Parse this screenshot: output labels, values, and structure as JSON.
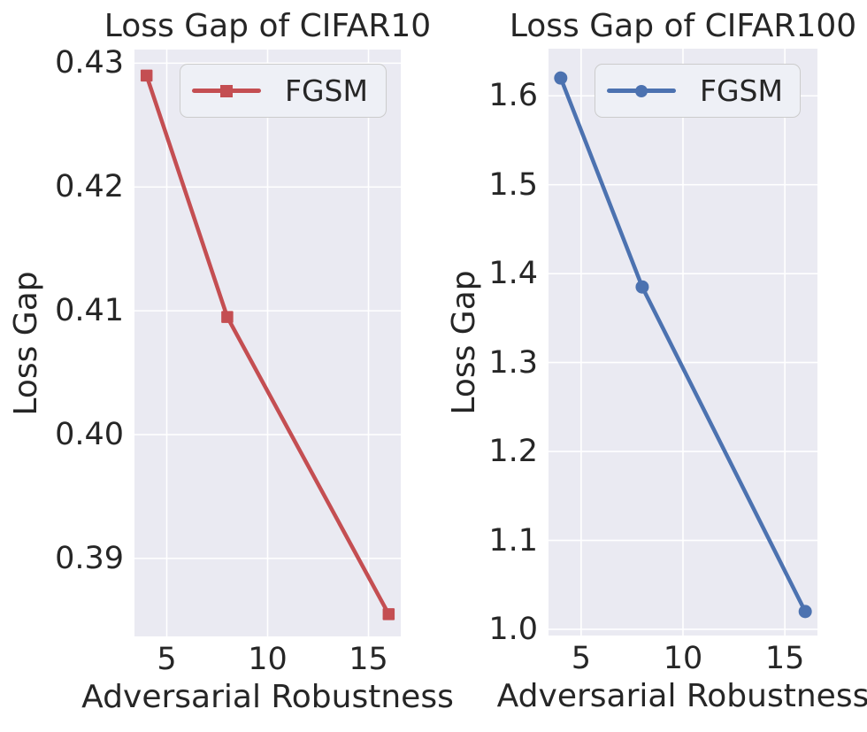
{
  "theme": {
    "background": "#ffffff",
    "plot_background": "#eaeaf2",
    "grid_color": "#ffffff",
    "text_color": "#262626",
    "legend_background": "#eef0f6",
    "legend_border": "#cccccc"
  },
  "chart_data": [
    {
      "type": "line",
      "title": "Loss Gap of CIFAR10",
      "xlabel": "Adversarial Robustness",
      "ylabel": "Loss Gap",
      "x": [
        4,
        8,
        16
      ],
      "series": [
        {
          "name": "FGSM",
          "values": [
            0.429,
            0.4095,
            0.3855
          ],
          "color": "#c44e52",
          "marker": "square"
        }
      ],
      "xlim": [
        3.4,
        16.6
      ],
      "ylim": [
        0.3837,
        0.4311
      ],
      "xticks": [
        5,
        10,
        15
      ],
      "xtick_labels": [
        "5",
        "10",
        "15"
      ],
      "yticks": [
        0.39,
        0.4,
        0.41,
        0.42,
        0.43
      ],
      "ytick_labels": [
        "0.39",
        "0.40",
        "0.41",
        "0.42",
        "0.43"
      ],
      "grid": true,
      "legend_position": "upper left inside"
    },
    {
      "type": "line",
      "title": "Loss Gap of CIFAR100",
      "xlabel": "Adversarial Robustness",
      "ylabel": "Loss Gap",
      "x": [
        4,
        8,
        16
      ],
      "series": [
        {
          "name": "FGSM",
          "values": [
            1.62,
            1.385,
            1.02
          ],
          "color": "#4c72b0",
          "marker": "circle"
        }
      ],
      "xlim": [
        3.4,
        16.6
      ],
      "ylim": [
        0.993,
        1.653
      ],
      "xticks": [
        5,
        10,
        15
      ],
      "xtick_labels": [
        "5",
        "10",
        "15"
      ],
      "yticks": [
        1.0,
        1.1,
        1.2,
        1.3,
        1.4,
        1.5,
        1.6
      ],
      "ytick_labels": [
        "1.0",
        "1.1",
        "1.2",
        "1.3",
        "1.4",
        "1.5",
        "1.6"
      ],
      "grid": true,
      "legend_position": "upper left inside"
    }
  ]
}
